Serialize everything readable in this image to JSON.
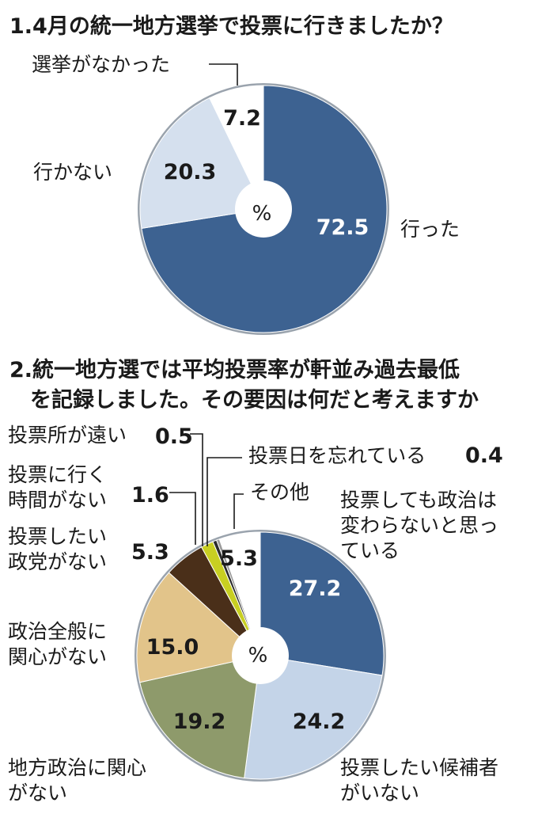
{
  "chart_data": [
    {
      "type": "pie",
      "title": "1.4月の統一地方選挙で投票に行きましたか？",
      "center_label": "%",
      "slices": [
        {
          "label": "行った",
          "value": 72.5,
          "value_text": "72.5",
          "color": "#3d6291"
        },
        {
          "label": "行かない",
          "value": 20.3,
          "value_text": "20.3",
          "color": "#d5e0ee"
        },
        {
          "label": "選挙がなかった",
          "value": 7.2,
          "value_text": "7.2",
          "color": "#ffffff"
        }
      ]
    },
    {
      "type": "pie",
      "title_line1": "2.統一地方選では平均投票率が軒並み過去最低",
      "title_line2": "を記録しました。その要因は何だと考えますか",
      "center_label": "%",
      "slices": [
        {
          "label_lines": [
            "投票しても政治は",
            "変わらないと思っ",
            "ている"
          ],
          "value": 27.2,
          "value_text": "27.2",
          "color": "#3d6291"
        },
        {
          "label_lines": [
            "投票したい候補者",
            "がいない"
          ],
          "value": 24.2,
          "value_text": "24.2",
          "color": "#c4d4e8"
        },
        {
          "label_lines": [
            "地方政治に関心",
            "がない"
          ],
          "value": 19.2,
          "value_text": "19.2",
          "color": "#8e9a6b"
        },
        {
          "label_lines": [
            "政治全般に",
            "関心がない"
          ],
          "value": 15.0,
          "value_text": "15.0",
          "color": "#e2c48a"
        },
        {
          "label_lines": [
            "投票したい",
            "政党がない"
          ],
          "value": 5.3,
          "value_text": "5.3",
          "color": "#4a2f19"
        },
        {
          "label_lines": [
            "投票に行く",
            "時間がない"
          ],
          "value": 1.6,
          "value_text": "1.6",
          "color": "#c8cf22"
        },
        {
          "label_lines": [
            "投票所が遠い"
          ],
          "value": 0.5,
          "value_text": "0.5",
          "color": "#2a2a2a"
        },
        {
          "label_lines": [
            "投票日を忘れている"
          ],
          "value": 0.4,
          "value_text": "0.4",
          "color": "#9a9a9a"
        },
        {
          "label_lines": [
            "その他"
          ],
          "value": 5.3,
          "value_text": "5.3",
          "color": "#ffffff"
        }
      ]
    }
  ]
}
